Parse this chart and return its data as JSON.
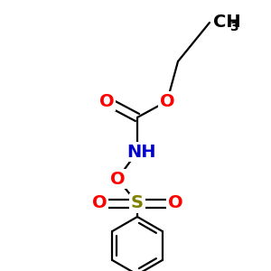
{
  "bg_color": "#ffffff",
  "atom_colors": {
    "O": "#ff0000",
    "N": "#0000cc",
    "S": "#808000",
    "C": "#000000"
  },
  "lw": 1.6,
  "dbo": 0.013
}
